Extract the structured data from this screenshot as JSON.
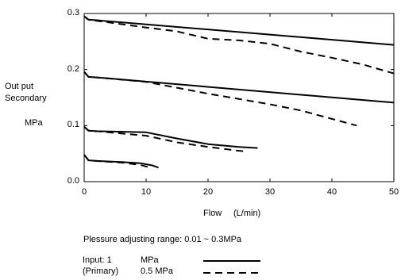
{
  "chart_data": {
    "type": "line",
    "xlabel": "Flow",
    "xunit": "(L/min)",
    "ylabel_lines": [
      "Out put",
      "Secondary"
    ],
    "yunit": "MPa",
    "xlim": [
      0,
      50
    ],
    "ylim": [
      0,
      0.3
    ],
    "xticks": [
      "0",
      "10",
      "20",
      "30",
      "40",
      "50"
    ],
    "yticks": [
      "0.0",
      "0.1",
      "0.2",
      "0.3"
    ],
    "grid": false,
    "series": [
      {
        "name": "1 MPa",
        "style": "solid",
        "x": [
          0,
          0.7,
          2,
          50
        ],
        "y": [
          0.295,
          0.289,
          0.288,
          0.244
        ]
      },
      {
        "name": "0.5 MPa",
        "style": "dashed",
        "x": [
          0,
          0.7,
          2,
          10,
          15,
          20,
          25,
          30,
          35,
          40,
          45,
          50
        ],
        "y": [
          0.295,
          0.289,
          0.287,
          0.275,
          0.268,
          0.255,
          0.252,
          0.246,
          0.232,
          0.221,
          0.209,
          0.193
        ]
      },
      {
        "name": "1 MPa",
        "style": "solid",
        "x": [
          0,
          0.7,
          2,
          50
        ],
        "y": [
          0.196,
          0.187,
          0.186,
          0.141
        ]
      },
      {
        "name": "0.5 MPa",
        "style": "dashed",
        "x": [
          0,
          0.7,
          2,
          10,
          20,
          30,
          35,
          40,
          44
        ],
        "y": [
          0.196,
          0.187,
          0.186,
          0.178,
          0.157,
          0.138,
          0.127,
          0.112,
          0.1
        ]
      },
      {
        "name": "1 MPa",
        "style": "solid",
        "x": [
          0,
          0.7,
          2,
          10,
          15,
          20,
          25,
          28
        ],
        "y": [
          0.098,
          0.091,
          0.09,
          0.088,
          0.077,
          0.067,
          0.062,
          0.06
        ]
      },
      {
        "name": "0.5 MPa",
        "style": "dashed",
        "x": [
          0,
          0.7,
          2,
          10,
          15,
          20,
          25,
          26
        ],
        "y": [
          0.098,
          0.091,
          0.09,
          0.082,
          0.07,
          0.062,
          0.055,
          0.054
        ]
      },
      {
        "name": "1 MPa",
        "style": "solid",
        "x": [
          0,
          0.7,
          2,
          6,
          9,
          11,
          12
        ],
        "y": [
          0.048,
          0.038,
          0.037,
          0.035,
          0.033,
          0.029,
          0.025
        ]
      },
      {
        "name": "0.5 MPa",
        "style": "dashed",
        "x": [
          0,
          0.7,
          2,
          6,
          9,
          11
        ],
        "y": [
          0.048,
          0.038,
          0.037,
          0.034,
          0.03,
          0.024
        ]
      }
    ],
    "range_note": "Plessure adjusting range: 0.01 ~ 0.3MPa",
    "legend": {
      "input_label": "Input: 1",
      "primary_label": "(Primary)",
      "entries": [
        {
          "label": "MPa",
          "style": "solid"
        },
        {
          "label": "0.5 MPa",
          "style": "dashed"
        }
      ]
    }
  }
}
